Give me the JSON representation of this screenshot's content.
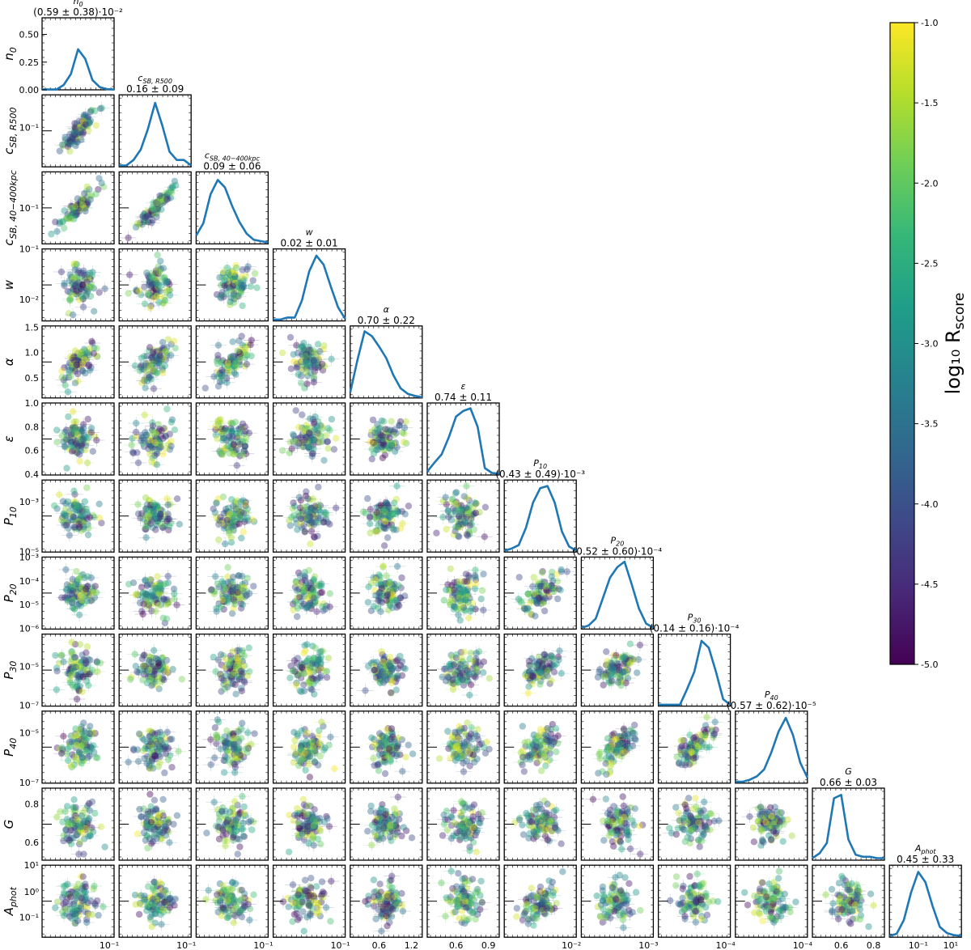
{
  "chart_data": {
    "type": "scatter",
    "kind": "corner",
    "parameters": [
      {
        "key": "n0",
        "label": "n0",
        "sub": "0",
        "base": "n",
        "title_main": "n0",
        "stat": "(0.59 ± 0.38)·10⁻²",
        "log": false,
        "hist_x": [
          0,
          0.1,
          0.2,
          0.3,
          0.4,
          0.5,
          0.6,
          0.7,
          0.8,
          0.9,
          1
        ],
        "hist_y": [
          0.005,
          0.005,
          0.005,
          0.07,
          0.23,
          0.59,
          0.45,
          0.14,
          0.04,
          0.01,
          0.005
        ],
        "diag_ticks": [
          0.0,
          0.25,
          0.5
        ],
        "diag_tick_labels": [
          "0.00",
          "0.25",
          "0.50"
        ],
        "diag_ylim": [
          0,
          0.65
        ],
        "axis_ticks": [
          "10⁻¹"
        ]
      },
      {
        "key": "csb500",
        "label": "cSB, R500",
        "base": "c",
        "sub": "SB, R500",
        "stat": "0.16 ± 0.09",
        "log": true,
        "hist_x": [
          0,
          0.1,
          0.2,
          0.3,
          0.4,
          0.5,
          0.6,
          0.7,
          0.8,
          0.9,
          1
        ],
        "hist_y": [
          0.02,
          0.02,
          0.1,
          0.25,
          0.55,
          0.93,
          0.6,
          0.22,
          0.1,
          0.1,
          0.02
        ],
        "axis_ticks": [
          "10⁻¹"
        ]
      },
      {
        "key": "csb40",
        "label": "cSB, 40−400kpc",
        "base": "c",
        "sub": "SB, 40−400kpc",
        "stat": "0.09 ± 0.06",
        "log": true,
        "hist_x": [
          0,
          0.1,
          0.2,
          0.3,
          0.4,
          0.5,
          0.6,
          0.7,
          0.8,
          0.9,
          1
        ],
        "hist_y": [
          0.12,
          0.3,
          0.72,
          0.93,
          0.82,
          0.55,
          0.32,
          0.15,
          0.06,
          0.04,
          0.02
        ],
        "axis_ticks": [
          "10⁻¹"
        ]
      },
      {
        "key": "w",
        "label": "w",
        "base": "w",
        "sub": "",
        "stat": "0.02 ± 0.01",
        "log": true,
        "hist_x": [
          0,
          0.1,
          0.2,
          0.3,
          0.4,
          0.5,
          0.6,
          0.7,
          0.8,
          0.9,
          1
        ],
        "hist_y": [
          0.02,
          0.02,
          0.05,
          0.05,
          0.3,
          0.72,
          0.95,
          0.82,
          0.5,
          0.2,
          0.03
        ],
        "axis_ticks": [
          "10⁻¹"
        ]
      },
      {
        "key": "alpha",
        "label": "α",
        "base": "α",
        "sub": "",
        "stat": "0.70 ± 0.22",
        "log": false,
        "hist_x": [
          0,
          0.1,
          0.2,
          0.3,
          0.4,
          0.5,
          0.6,
          0.7,
          0.8,
          0.9,
          1
        ],
        "hist_y": [
          0.08,
          0.55,
          0.97,
          0.9,
          0.75,
          0.58,
          0.33,
          0.14,
          0.06,
          0.03,
          0.01
        ],
        "axis_ticks": [
          "0.6",
          "1.2"
        ]
      },
      {
        "key": "eps",
        "label": "ε",
        "base": "ε",
        "sub": "",
        "stat": "0.74 ± 0.11",
        "log": false,
        "hist_x": [
          0,
          0.1,
          0.2,
          0.3,
          0.4,
          0.5,
          0.6,
          0.7,
          0.8,
          0.9,
          1
        ],
        "hist_y": [
          0.05,
          0.18,
          0.3,
          0.55,
          0.85,
          0.93,
          0.97,
          0.7,
          0.1,
          0.03,
          0.02
        ],
        "axis_ticks": [
          "0.6",
          "0.9"
        ]
      },
      {
        "key": "p10",
        "label": "P10",
        "base": "P",
        "sub": "10",
        "stat": "(0.43 ± 0.49)·10⁻³",
        "log": true,
        "hist_x": [
          0,
          0.1,
          0.2,
          0.3,
          0.4,
          0.5,
          0.6,
          0.7,
          0.8,
          0.9,
          1
        ],
        "hist_y": [
          0.02,
          0.05,
          0.1,
          0.35,
          0.72,
          0.93,
          0.96,
          0.72,
          0.3,
          0.08,
          0.02
        ],
        "axis_ticks": [
          "10⁻²"
        ]
      },
      {
        "key": "p20",
        "label": "P20",
        "base": "P",
        "sub": "20",
        "stat": "(0.52 ± 0.60)·10⁻⁴",
        "log": true,
        "hist_x": [
          0,
          0.1,
          0.2,
          0.3,
          0.4,
          0.5,
          0.6,
          0.7,
          0.8,
          0.9,
          1
        ],
        "hist_y": [
          0.02,
          0.05,
          0.15,
          0.45,
          0.75,
          0.9,
          0.98,
          0.65,
          0.3,
          0.08,
          0.02
        ],
        "axis_ticks": [
          "10⁻³"
        ]
      },
      {
        "key": "p30",
        "label": "P30",
        "base": "P",
        "sub": "30",
        "stat": "(0.14 ± 0.16)·10⁻⁴",
        "log": true,
        "hist_x": [
          0,
          0.1,
          0.2,
          0.3,
          0.4,
          0.5,
          0.6,
          0.7,
          0.8,
          0.9,
          1
        ],
        "hist_y": [
          0.02,
          0.02,
          0.02,
          0.02,
          0.25,
          0.5,
          0.95,
          0.85,
          0.5,
          0.1,
          0.02
        ],
        "axis_ticks": [
          "10⁻⁴"
        ]
      },
      {
        "key": "p40",
        "label": "P40",
        "base": "P",
        "sub": "40",
        "stat": "(0.57 ± 0.62)·10⁻⁵",
        "log": true,
        "hist_x": [
          0,
          0.1,
          0.2,
          0.3,
          0.4,
          0.5,
          0.6,
          0.7,
          0.8,
          0.9,
          1
        ],
        "hist_y": [
          0.02,
          0.02,
          0.05,
          0.1,
          0.2,
          0.45,
          0.75,
          0.95,
          0.7,
          0.3,
          0.08
        ],
        "axis_ticks": [
          "10⁻⁴"
        ]
      },
      {
        "key": "G",
        "label": "G",
        "base": "G",
        "sub": "",
        "stat": "0.66 ± 0.03",
        "log": false,
        "hist_x": [
          0,
          0.1,
          0.2,
          0.3,
          0.4,
          0.5,
          0.6,
          0.7,
          0.8,
          0.9,
          1
        ],
        "hist_y": [
          0.03,
          0.1,
          0.25,
          0.9,
          0.95,
          0.3,
          0.08,
          0.05,
          0.05,
          0.03,
          0.03
        ],
        "axis_ticks": [
          "0.6",
          "0.8"
        ]
      },
      {
        "key": "aphot",
        "label": "Aphot",
        "base": "A",
        "sub": "phot",
        "stat": "0.45 ± 0.33",
        "log": true,
        "hist_x": [
          0,
          0.1,
          0.2,
          0.3,
          0.4,
          0.5,
          0.6,
          0.7,
          0.8,
          0.9,
          1
        ],
        "hist_y": [
          0.02,
          0.05,
          0.25,
          0.65,
          0.95,
          0.8,
          0.45,
          0.15,
          0.06,
          0.03,
          0.02
        ],
        "axis_ticks": [
          "10⁻¹",
          "10¹"
        ]
      }
    ],
    "row_ticks": {
      "csb500": {
        "labels": [
          "10⁻¹"
        ],
        "pos": [
          0.45
        ]
      },
      "csb40": {
        "labels": [
          "10⁻¹"
        ],
        "pos": [
          0.5
        ]
      },
      "w": {
        "labels": [
          "10⁻¹",
          "10⁻²"
        ],
        "pos": [
          0.0,
          0.7
        ]
      },
      "alpha": {
        "labels": [
          "1.5",
          "1.0",
          "0.5"
        ],
        "pos": [
          0.02,
          0.37,
          0.72
        ]
      },
      "eps": {
        "labels": [
          "1.0",
          "0.8",
          "0.6",
          "0.4"
        ],
        "pos": [
          0.0,
          0.33,
          0.66,
          0.99
        ]
      },
      "p10": {
        "labels": [
          "10⁻³",
          "10⁻⁵"
        ],
        "pos": [
          0.3,
          0.99
        ]
      },
      "p20": {
        "labels": [
          "10⁻³",
          "10⁻⁴",
          "10⁻⁵",
          "10⁻⁶"
        ],
        "pos": [
          0.0,
          0.33,
          0.66,
          0.99
        ]
      },
      "p30": {
        "labels": [
          "10⁻⁵",
          "10⁻⁷"
        ],
        "pos": [
          0.45,
          0.99
        ]
      },
      "p40": {
        "labels": [
          "10⁻⁵",
          "10⁻⁷"
        ],
        "pos": [
          0.3,
          0.99
        ]
      },
      "G": {
        "labels": [
          "0.8",
          "0.6"
        ],
        "pos": [
          0.22,
          0.75
        ]
      },
      "aphot": {
        "labels": [
          "10¹",
          "10⁰",
          "10⁻¹"
        ],
        "pos": [
          0.0,
          0.37,
          0.72
        ]
      }
    },
    "colorbar": {
      "label": "log₁₀ R",
      "label_sub": "score",
      "ticks": [
        "-1.0",
        "-1.5",
        "-2.0",
        "-2.5",
        "-3.0",
        "-3.5",
        "-4.0",
        "-4.5",
        "-5.0"
      ],
      "range": [
        -5.0,
        -1.0
      ],
      "colors": [
        "#440154",
        "#482878",
        "#3e4989",
        "#31688e",
        "#26828e",
        "#1f9e89",
        "#35b779",
        "#6ece58",
        "#b5de2b",
        "#fde725"
      ]
    },
    "line_color": "#1f77b4"
  }
}
